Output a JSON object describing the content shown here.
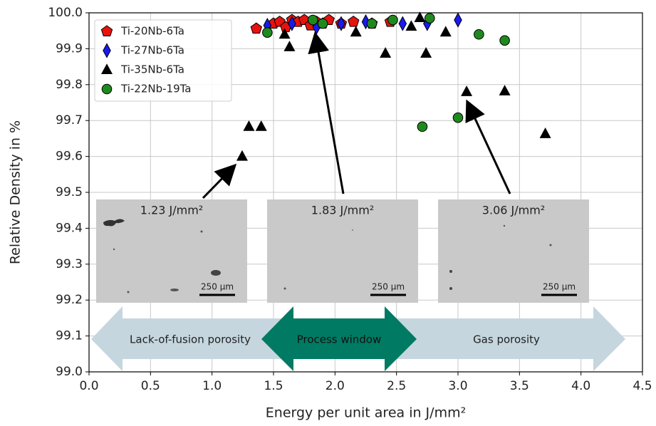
{
  "chart_data": {
    "type": "scatter",
    "xlabel": "Energy per unit area in J/mm²",
    "ylabel": "Relative Density in %",
    "xlim": [
      0,
      4.5
    ],
    "ylim": [
      99.0,
      100.0
    ],
    "xticks": [
      {
        "value": 0,
        "label": "0.0"
      },
      0.5,
      {
        "value": 1,
        "label": "1.0"
      },
      1.5,
      {
        "value": 2,
        "label": "2.0"
      },
      2.5,
      {
        "value": 3,
        "label": "3.0"
      },
      3.5,
      {
        "value": 4,
        "label": "4.0"
      },
      4.5
    ],
    "yticks": [
      {
        "value": 99,
        "label": "99.0"
      },
      99.1,
      99.2,
      99.3,
      99.4,
      99.5,
      99.6,
      99.7,
      99.8,
      99.9,
      {
        "value": 100,
        "label": "100.0"
      }
    ],
    "grid": true,
    "legend": "upper left",
    "series": [
      {
        "name": "Ti-20Nb-6Ta",
        "color": "#e8120c",
        "marker": "pentagon",
        "x": [
          1.36,
          1.5,
          1.55,
          1.6,
          1.65,
          1.7,
          1.75,
          1.8,
          1.85,
          1.9,
          1.95,
          2.05,
          2.15,
          2.3,
          2.45
        ],
        "values": [
          99.956,
          99.97,
          99.975,
          99.96,
          99.98,
          99.975,
          99.98,
          99.965,
          99.975,
          99.97,
          99.98,
          99.97,
          99.975,
          99.97,
          99.975
        ]
      },
      {
        "name": "Ti-27Nb-6Ta",
        "color": "#1a1aee",
        "marker": "diamond",
        "x": [
          1.45,
          1.65,
          1.85,
          2.05,
          2.25,
          2.55,
          2.75,
          3.0
        ],
        "values": [
          99.965,
          99.97,
          99.96,
          99.97,
          99.975,
          99.97,
          99.97,
          99.98
        ]
      },
      {
        "name": "Ti-35Nb-6Ta",
        "color": "#000000",
        "marker": "triangle",
        "x": [
          1.245,
          1.3,
          1.4,
          1.59,
          1.63,
          2.17,
          2.41,
          2.62,
          2.69,
          2.74,
          2.9,
          3.07,
          3.38,
          3.71
        ],
        "values": [
          99.6,
          99.683,
          99.683,
          99.94,
          99.905,
          99.946,
          99.887,
          99.962,
          99.986,
          99.887,
          99.946,
          99.78,
          99.782,
          99.663
        ]
      },
      {
        "name": "Ti-22Nb-19Ta",
        "color": "#1e8a1e",
        "marker": "circle",
        "x": [
          1.45,
          1.82,
          1.9,
          2.3,
          2.47,
          2.71,
          2.77,
          3.0,
          3.17,
          3.38
        ],
        "values": [
          99.945,
          99.98,
          99.97,
          99.97,
          99.98,
          99.683,
          99.985,
          99.708,
          99.94,
          99.923
        ]
      }
    ],
    "insets": [
      {
        "label": "1.23 J/mm²",
        "scale": "250 µm"
      },
      {
        "label": "1.83 J/mm²",
        "scale": "250 µm"
      },
      {
        "label": "3.06 J/mm²",
        "scale": "250 µm"
      }
    ],
    "regions": [
      "Lack-of-fusion porosity",
      "Process window",
      "Gas porosity"
    ]
  }
}
